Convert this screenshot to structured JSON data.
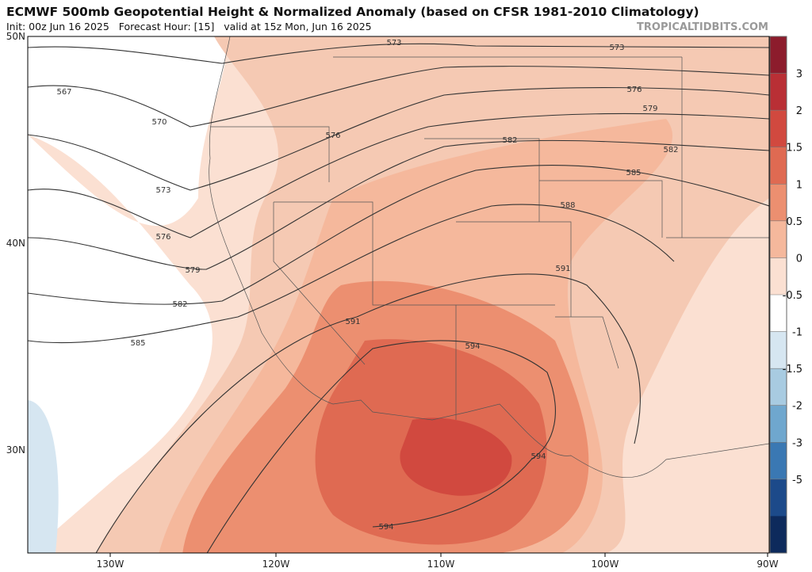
{
  "header": {
    "title": "ECMWF 500mb Geopotential Height & Normalized Anomaly (based on CFSR 1981-2010 Climatology)",
    "subtitle": "Init: 00z Jun 16 2025   Forecast Hour: [15]   valid at 15z Mon, Jun 16 2025",
    "credit": "TROPICALTIDBITS.COM"
  },
  "map": {
    "lat_labels": [
      "50N",
      "40N",
      "30N"
    ],
    "lon_labels": [
      "130W",
      "120W",
      "110W",
      "100W",
      "90W"
    ],
    "contour_labels": [
      "573",
      "573",
      "567",
      "570",
      "576",
      "579",
      "576",
      "582",
      "582",
      "573",
      "585",
      "588",
      "576",
      "591",
      "579",
      "582",
      "591",
      "585",
      "594",
      "594",
      "594"
    ]
  },
  "colorbar": {
    "ticks": [
      3,
      2,
      1.5,
      1,
      0.5,
      0,
      -0.5,
      -1,
      -1.5,
      -2,
      -3,
      -5
    ],
    "colors": [
      "#8c1c2c",
      "#b92f35",
      "#d1493f",
      "#df6a52",
      "#ec8f70",
      "#f5b89c",
      "#fbe0d2",
      "#ffffff",
      "#d6e6f1",
      "#a8cbe1",
      "#6fa7ce",
      "#3a78b3",
      "#1c4a8a",
      "#0d2a5c"
    ]
  }
}
